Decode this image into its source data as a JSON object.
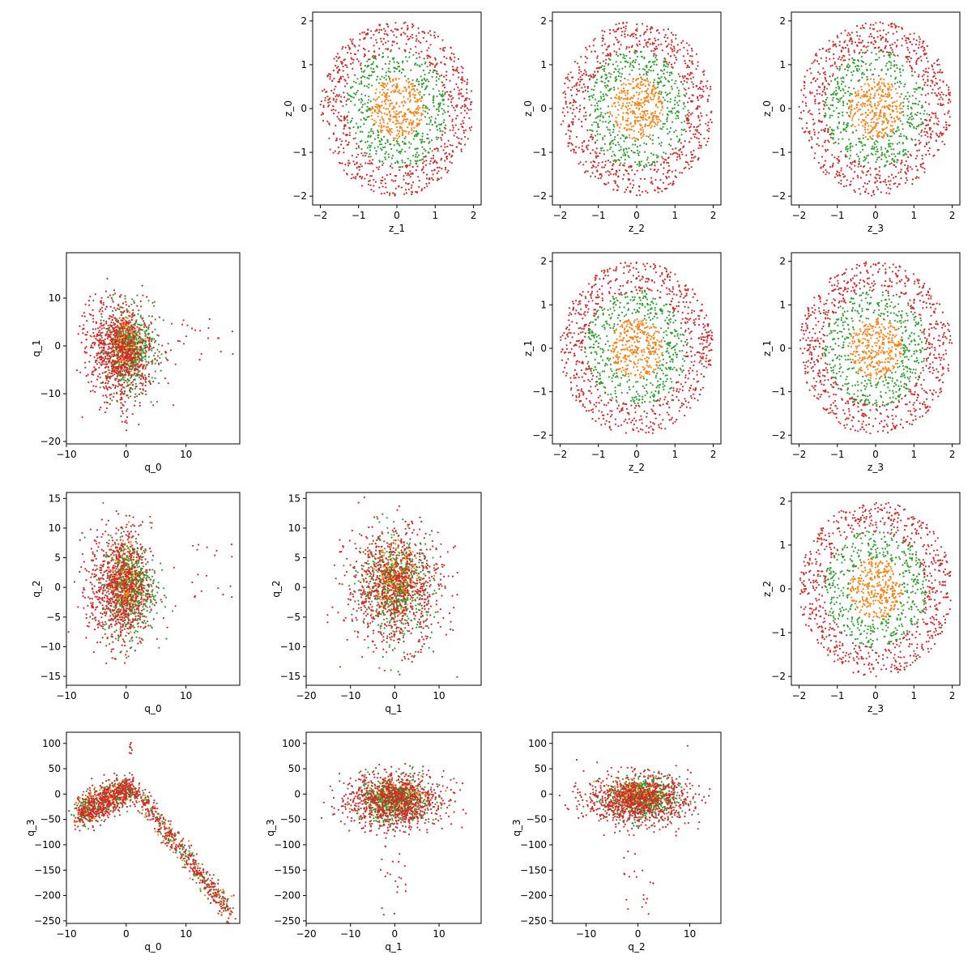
{
  "colors": {
    "inner": "#ff7f0e",
    "middle": "#2ca02c",
    "outer": "#d62728"
  },
  "chart_data": [
    {
      "type": "scatter",
      "xlabel": "z_1",
      "ylabel": "z_0",
      "xlim": [
        -2.2,
        2.2
      ],
      "ylim": [
        -2.2,
        2.2
      ],
      "xticks": [
        -2,
        -1,
        0,
        1,
        2
      ],
      "yticks": [
        -2,
        -1,
        0,
        1,
        2
      ],
      "pattern": "z"
    },
    {
      "type": "scatter",
      "xlabel": "z_2",
      "ylabel": "z_0",
      "xlim": [
        -2.2,
        2.2
      ],
      "ylim": [
        -2.2,
        2.2
      ],
      "xticks": [
        -2,
        -1,
        0,
        1,
        2
      ],
      "yticks": [
        -2,
        -1,
        0,
        1,
        2
      ],
      "pattern": "z"
    },
    {
      "type": "scatter",
      "xlabel": "z_3",
      "ylabel": "z_0",
      "xlim": [
        -2.2,
        2.2
      ],
      "ylim": [
        -2.2,
        2.2
      ],
      "xticks": [
        -2,
        -1,
        0,
        1,
        2
      ],
      "yticks": [
        -2,
        -1,
        0,
        1,
        2
      ],
      "pattern": "z"
    },
    {
      "type": "scatter",
      "xlabel": "q_0",
      "ylabel": "q_1",
      "xlim": [
        -10,
        19
      ],
      "ylim": [
        -20.5,
        19.5
      ],
      "xticks": [
        -10,
        0,
        10
      ],
      "yticks": [
        -20,
        -10,
        0,
        10
      ],
      "pattern": "q0q1"
    },
    {
      "type": "scatter",
      "xlabel": "z_2",
      "ylabel": "z_1",
      "xlim": [
        -2.2,
        2.2
      ],
      "ylim": [
        -2.2,
        2.2
      ],
      "xticks": [
        -2,
        -1,
        0,
        1,
        2
      ],
      "yticks": [
        -2,
        -1,
        0,
        1,
        2
      ],
      "pattern": "z"
    },
    {
      "type": "scatter",
      "xlabel": "z_3",
      "ylabel": "z_1",
      "xlim": [
        -2.2,
        2.2
      ],
      "ylim": [
        -2.2,
        2.2
      ],
      "xticks": [
        -2,
        -1,
        0,
        1,
        2
      ],
      "yticks": [
        -2,
        -1,
        0,
        1,
        2
      ],
      "pattern": "z"
    },
    {
      "type": "scatter",
      "xlabel": "q_0",
      "ylabel": "q_2",
      "xlim": [
        -10,
        19
      ],
      "ylim": [
        -16.5,
        16
      ],
      "xticks": [
        -10,
        0,
        10
      ],
      "yticks": [
        -15,
        -10,
        -5,
        0,
        5,
        10,
        15
      ],
      "pattern": "q0q2"
    },
    {
      "type": "scatter",
      "xlabel": "q_1",
      "ylabel": "q_2",
      "xlim": [
        -20,
        19.5
      ],
      "ylim": [
        -16.5,
        16
      ],
      "xticks": [
        -20,
        -10,
        0,
        10
      ],
      "yticks": [
        -15,
        -10,
        -5,
        0,
        5,
        10,
        15
      ],
      "pattern": "q1q2"
    },
    {
      "type": "scatter",
      "xlabel": "z_3",
      "ylabel": "z_2",
      "xlim": [
        -2.2,
        2.2
      ],
      "ylim": [
        -2.2,
        2.2
      ],
      "xticks": [
        -2,
        -1,
        0,
        1,
        2
      ],
      "yticks": [
        -2,
        -1,
        0,
        1,
        2
      ],
      "pattern": "z"
    },
    {
      "type": "scatter",
      "xlabel": "q_0",
      "ylabel": "q_3",
      "xlim": [
        -10,
        19
      ],
      "ylim": [
        -255,
        122
      ],
      "xticks": [
        -10,
        0,
        10
      ],
      "yticks": [
        -250,
        -200,
        -150,
        -100,
        -50,
        0,
        50,
        100
      ],
      "pattern": "q0q3"
    },
    {
      "type": "scatter",
      "xlabel": "q_1",
      "ylabel": "q_3",
      "xlim": [
        -20,
        19.5
      ],
      "ylim": [
        -255,
        122
      ],
      "xticks": [
        -20,
        -10,
        0,
        10
      ],
      "yticks": [
        -250,
        -200,
        -150,
        -100,
        -50,
        0,
        50,
        100
      ],
      "pattern": "q1q3"
    },
    {
      "type": "scatter",
      "xlabel": "q_2",
      "ylabel": "q_3",
      "xlim": [
        -16.5,
        16
      ],
      "ylim": [
        -255,
        122
      ],
      "xticks": [
        -10,
        0,
        10
      ],
      "yticks": [
        -250,
        -200,
        -150,
        -100,
        -50,
        0,
        50,
        100
      ],
      "pattern": "q2q3"
    }
  ]
}
